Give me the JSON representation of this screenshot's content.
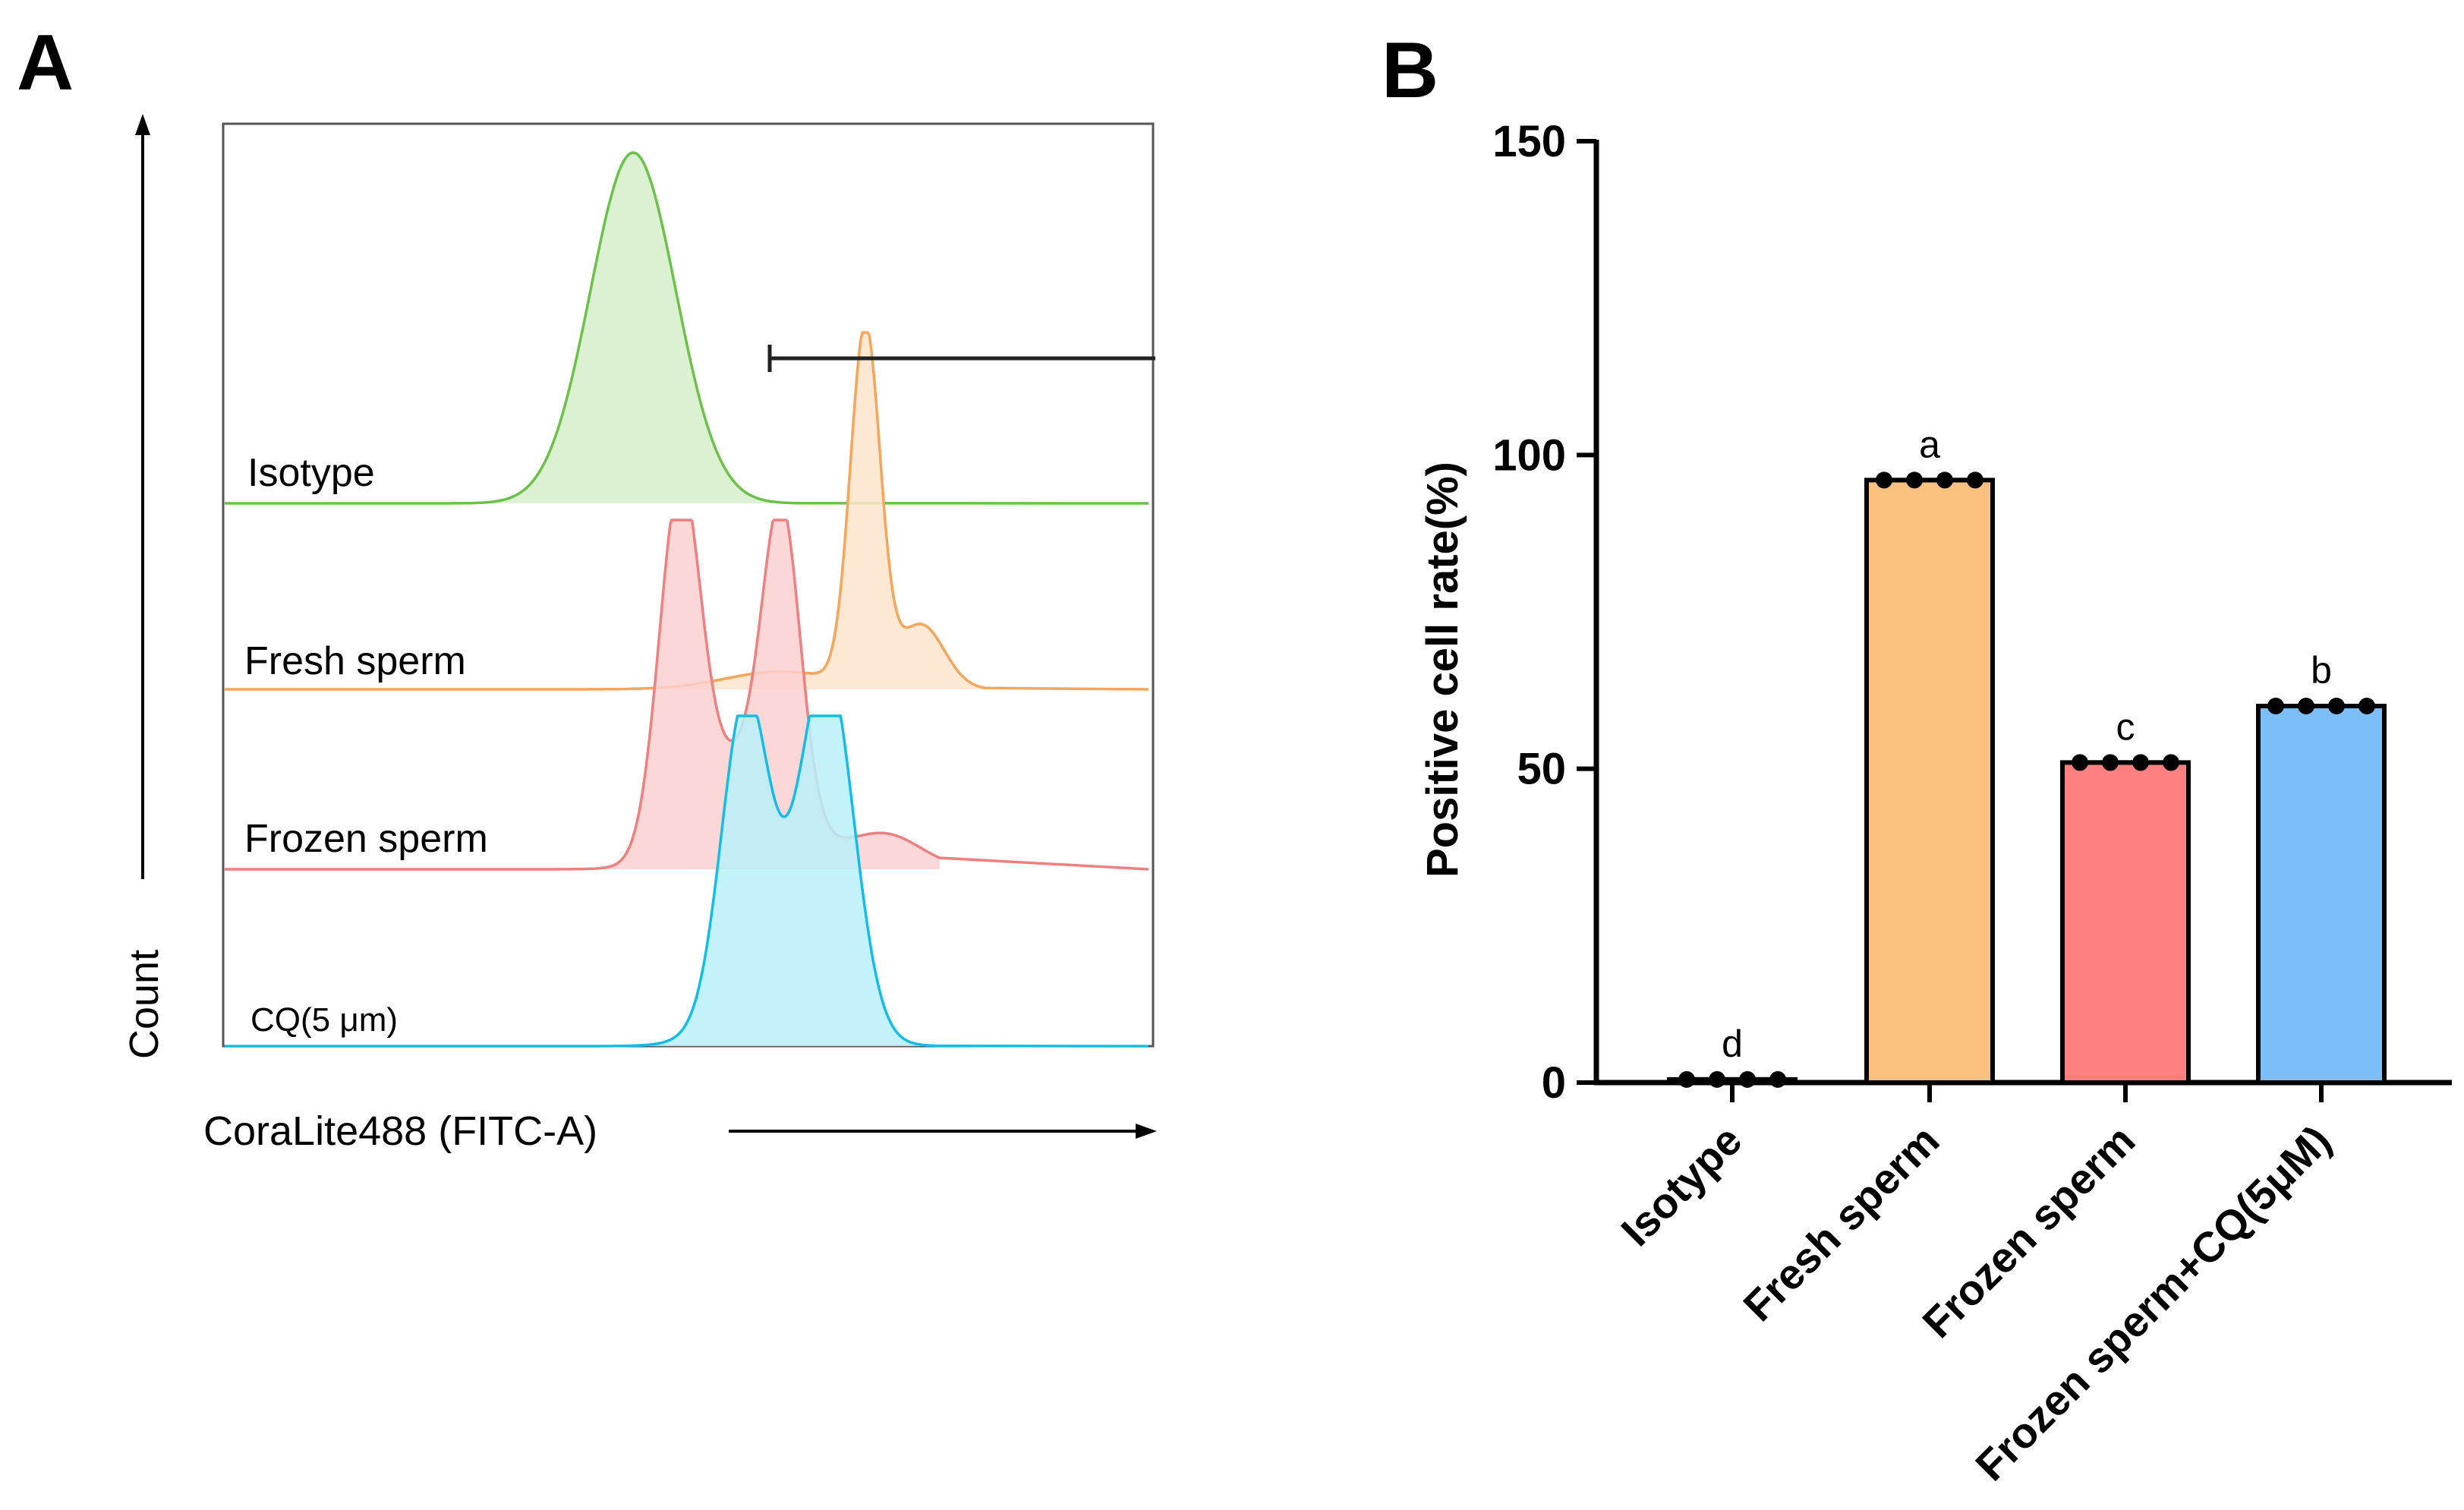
{
  "panel_labels": {
    "a": "A",
    "b": "B"
  },
  "panel_a": {
    "xlabel": "CoraLite488 (FITC-A)",
    "ylabel": "Count",
    "histograms": [
      {
        "label": "Isotype",
        "color": "#6cc14a",
        "fill": "#d5efc9",
        "peaks": [
          [
            0.44,
            0.046,
            1.0
          ]
        ]
      },
      {
        "label": "Fresh sperm",
        "color": "#f6a55a",
        "fill": "#fde4cb",
        "peaks": [
          [
            0.69,
            0.016,
            1.0
          ],
          [
            0.75,
            0.025,
            0.18
          ],
          [
            0.6,
            0.06,
            0.05
          ]
        ]
      },
      {
        "label": "Frozen sperm",
        "color": "#f07f80",
        "fill": "#fbd0d1",
        "peaks": [
          [
            0.49,
            0.022,
            1.0
          ],
          [
            0.6,
            0.02,
            0.82
          ],
          [
            0.56,
            0.05,
            0.32
          ],
          [
            0.71,
            0.04,
            0.1
          ]
        ]
      },
      {
        "label": "CQ(5 μm)",
        "color": "#13bde8",
        "fill": "#b8f0fa",
        "peaks": [
          [
            0.56,
            0.025,
            0.88
          ],
          [
            0.65,
            0.028,
            1.0
          ],
          [
            0.6,
            0.05,
            0.25
          ]
        ]
      }
    ]
  },
  "chart_data": {
    "type": "bar",
    "title": "",
    "xlabel": "",
    "ylabel": "Positive cell rate(%)",
    "ylim": [
      0,
      150
    ],
    "yticks": [
      0,
      50,
      100,
      150
    ],
    "categories": [
      "Isotype",
      "Fresh sperm",
      "Frozen sperm",
      "Frozen sperm+CQ(5μM)"
    ],
    "values": [
      0.5,
      96,
      51,
      60
    ],
    "points": [
      [
        0.5,
        0.5,
        0.5,
        0.5
      ],
      [
        96,
        96,
        96,
        96
      ],
      [
        51,
        51,
        51,
        51
      ],
      [
        60,
        60,
        60,
        60
      ]
    ],
    "significance_letters": [
      "d",
      "a",
      "c",
      "b"
    ],
    "colors": [
      "#ffffff",
      "#fcc07f",
      "#fd7f7f",
      "#7cbff8"
    ]
  }
}
